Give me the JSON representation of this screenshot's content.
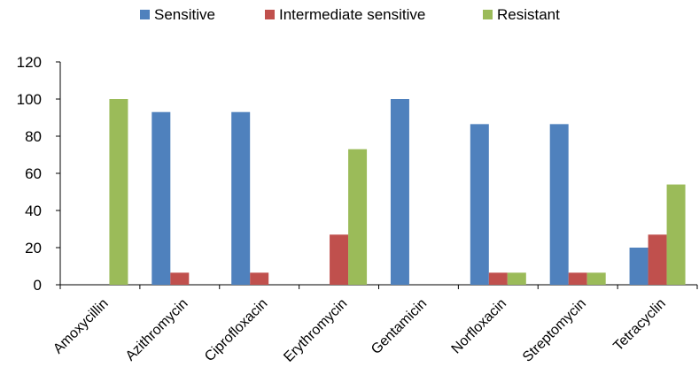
{
  "chart_data": {
    "type": "bar",
    "title": "",
    "xlabel": "",
    "ylabel": "",
    "ylim": [
      0,
      120
    ],
    "y_ticks": [
      0,
      20,
      40,
      60,
      80,
      100,
      120
    ],
    "grid": false,
    "legend_position": "top",
    "categories": [
      "Amoxycillin",
      "Azithromycin",
      "Ciprofloxacin",
      "Erythromycin",
      "Gentamicin",
      "Norfloxacin",
      "Streptomycin",
      "Tetracyclin"
    ],
    "series": [
      {
        "name": "Sensitive",
        "color": "#4F81BD",
        "values": [
          0,
          93,
          93,
          0,
          100,
          86.5,
          86.5,
          20
        ]
      },
      {
        "name": "Intermediate sensitive",
        "color": "#C0504D",
        "values": [
          0,
          6.5,
          6.5,
          27,
          0,
          6.5,
          6.5,
          27
        ]
      },
      {
        "name": "Resistant",
        "color": "#9BBB59",
        "values": [
          100,
          0,
          0,
          73,
          0,
          6.5,
          6.5,
          54
        ]
      }
    ]
  }
}
